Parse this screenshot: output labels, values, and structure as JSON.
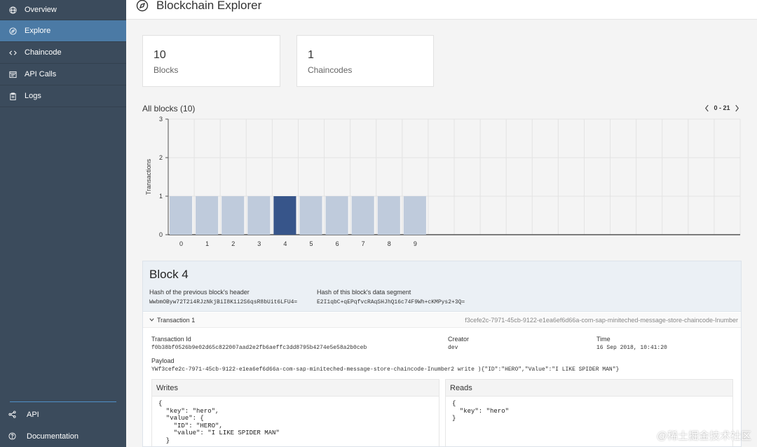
{
  "sidebar": {
    "items": [
      {
        "label": "Overview",
        "icon": "globe-icon"
      },
      {
        "label": "Explore",
        "icon": "compass-icon",
        "active": true
      },
      {
        "label": "Chaincode",
        "icon": "code-icon"
      },
      {
        "label": "API Calls",
        "icon": "api-calls-icon"
      },
      {
        "label": "Logs",
        "icon": "clipboard-icon"
      }
    ],
    "bottom": [
      {
        "label": "API",
        "icon": "share-icon"
      },
      {
        "label": "Documentation",
        "icon": "help-icon"
      }
    ]
  },
  "header": {
    "title": "Blockchain Explorer"
  },
  "stats": [
    {
      "value": "10",
      "label": "Blocks"
    },
    {
      "value": "1",
      "label": "Chaincodes"
    }
  ],
  "blocks_section": {
    "title": "All blocks (10)",
    "pager": "0 - 21"
  },
  "chart_data": {
    "type": "bar",
    "categories": [
      "0",
      "1",
      "2",
      "3",
      "4",
      "5",
      "6",
      "7",
      "8",
      "9"
    ],
    "values": [
      1,
      1,
      1,
      1,
      1,
      1,
      1,
      1,
      1,
      1
    ],
    "highlighted_index": 4,
    "total_slots": 22,
    "ylabel": "Transactions",
    "xlabel": "",
    "ylim": [
      0,
      3
    ],
    "yticks": [
      "0",
      "1",
      "2",
      "3"
    ],
    "grid": true,
    "colors": {
      "bar": "#bfcbdc",
      "highlight": "#37558a"
    }
  },
  "block": {
    "title": "Block 4",
    "prev_hash_label": "Hash of the previous block's header",
    "prev_hash": "WwbmOByw72T2i4RJzNkjBiI8K1i2S6qsR8bUit6LFU4=",
    "data_hash_label": "Hash of this block's data segment",
    "data_hash": "E2I1qbC+qEPqfvcRAqSHJhQ16c74F9Wh+cKMPys2+3Q=",
    "transaction": {
      "label": "Transaction 1",
      "header_id": "f3cefe2c-7971-45cb-9122-e1ea6ef6d66a-com-sap-miniteched-message-store-chaincode-Inumber",
      "tx_id_label": "Transaction Id",
      "tx_id": "f0b38bf0526b9e02d65c822007aad2e2fb6aeffc3dd8795b4274e5e58a2b0ceb",
      "creator_label": "Creator",
      "creator": "dev",
      "time_label": "Time",
      "time": "16 Sep 2018, 10:41:20",
      "payload_label": "Payload",
      "payload": "YWf3cefe2c-7971-45cb-9122-e1ea6ef6d66a-com-sap-miniteched-message-store-chaincode-Inumber2 write ){\"ID\":\"HERO\",\"Value\":\"I LIKE SPIDER MAN\"}",
      "writes_label": "Writes",
      "writes": "{\n  \"key\": \"hero\",\n  \"value\": {\n    \"ID\": \"HERO\",\n    \"value\": \"I LIKE SPIDER MAN\"\n  }",
      "reads_label": "Reads",
      "reads": "{\n  \"key\": \"hero\"\n}"
    }
  },
  "watermark": "@稀土掘金技术社区"
}
